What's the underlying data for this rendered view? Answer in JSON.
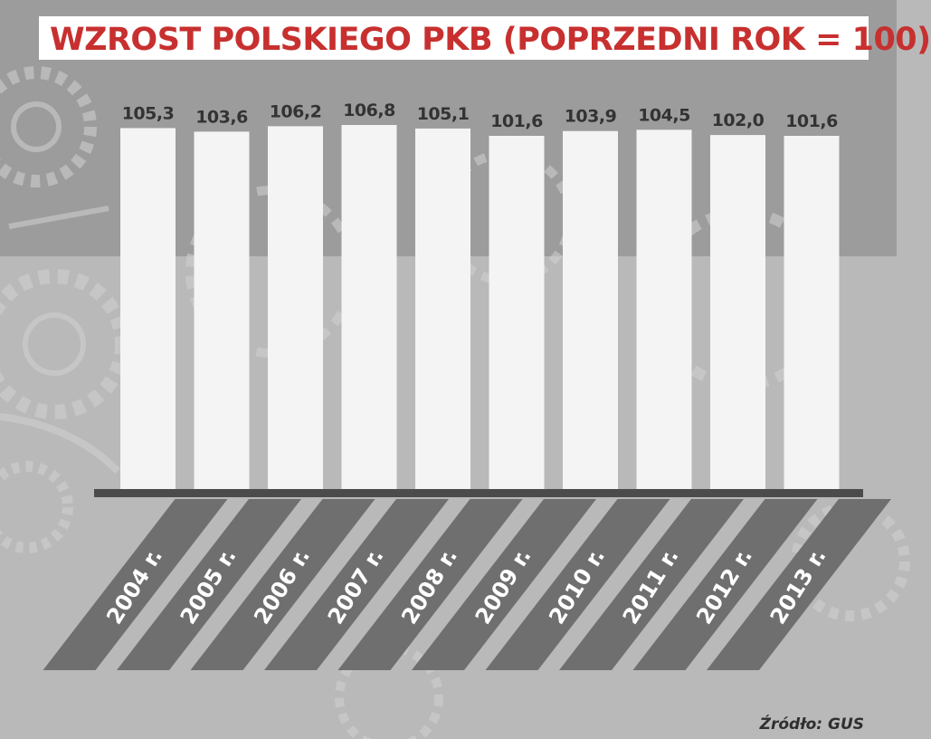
{
  "title": "WZROST POLSKIEGO PKB (POPRZEDNI ROK = 100)",
  "source": "Źródło: GUS",
  "colors": {
    "title": "#c7302f",
    "bar": "#f4f4f4",
    "axis": "#4b4b4b",
    "label_band": "#6f6f6f",
    "value_text": "#333333"
  },
  "chart_data": {
    "type": "bar",
    "title": "WZROST POLSKIEGO PKB (POPRZEDNI ROK = 100)",
    "categories": [
      "2004 r.",
      "2005 r.",
      "2006 r.",
      "2007 r.",
      "2008 r.",
      "2009 r.",
      "2010 r.",
      "2011 r.",
      "2012 r.",
      "2013 r."
    ],
    "values": [
      105.3,
      103.6,
      106.2,
      106.8,
      105.1,
      101.6,
      103.9,
      104.5,
      102.0,
      101.6
    ],
    "value_labels": [
      "105,3",
      "103,6",
      "106,2",
      "106,8",
      "105,1",
      "101,6",
      "103,9",
      "104,5",
      "102,0",
      "101,6"
    ],
    "xlabel": "",
    "ylabel": "",
    "grid": false,
    "legend": "none"
  }
}
